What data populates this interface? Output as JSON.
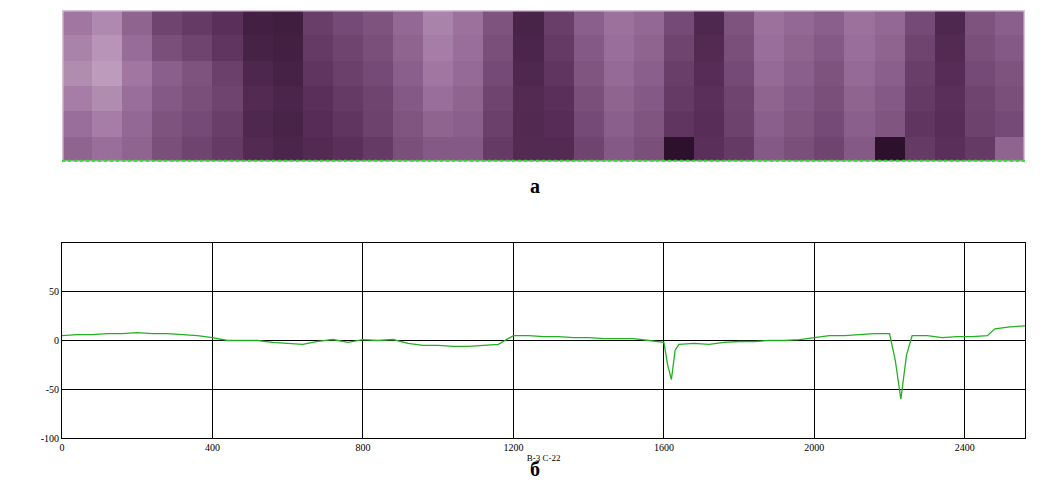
{
  "chart_data": [
    {
      "type": "heatmap",
      "panel": "а",
      "tick_labels": false,
      "x": [
        40,
        120,
        200,
        280,
        360,
        440,
        520,
        600,
        680,
        760,
        840,
        920,
        1000,
        1080,
        1160,
        1240,
        1320,
        1400,
        1480,
        1560,
        1640,
        1720,
        1800,
        1880,
        1960,
        2040,
        2120,
        2200,
        2280,
        2360,
        2440,
        2520
      ],
      "z": [
        [
          60,
          65,
          60,
          50,
          45,
          40,
          30,
          25,
          30,
          35,
          40,
          50,
          55,
          55,
          40,
          30,
          30,
          45,
          55,
          50,
          5,
          35,
          40,
          55,
          50,
          45,
          55,
          5,
          40,
          35,
          40,
          60
        ],
        [
          65,
          70,
          62,
          52,
          48,
          42,
          28,
          24,
          33,
          38,
          44,
          53,
          60,
          58,
          43,
          29,
          33,
          48,
          58,
          53,
          38,
          34,
          44,
          58,
          53,
          48,
          58,
          53,
          38,
          34,
          44,
          48
        ],
        [
          70,
          75,
          65,
          55,
          50,
          45,
          30,
          25,
          35,
          40,
          45,
          55,
          65,
          60,
          45,
          30,
          35,
          50,
          60,
          55,
          40,
          35,
          45,
          60,
          55,
          50,
          60,
          55,
          40,
          35,
          45,
          50
        ],
        [
          75,
          80,
          68,
          58,
          52,
          43,
          27,
          22,
          38,
          43,
          48,
          58,
          68,
          63,
          48,
          28,
          38,
          53,
          63,
          58,
          42,
          33,
          48,
          63,
          58,
          52,
          63,
          58,
          42,
          33,
          48,
          52
        ],
        [
          72,
          78,
          64,
          50,
          45,
          38,
          22,
          20,
          40,
          45,
          50,
          60,
          70,
          65,
          50,
          25,
          40,
          55,
          65,
          60,
          45,
          30,
          50,
          65,
          60,
          55,
          65,
          60,
          45,
          30,
          50,
          55
        ],
        [
          68,
          74,
          60,
          45,
          40,
          35,
          20,
          18,
          42,
          48,
          52,
          62,
          72,
          66,
          52,
          24,
          42,
          58,
          66,
          62,
          48,
          28,
          52,
          66,
          62,
          58,
          66,
          62,
          48,
          28,
          52,
          58
        ]
      ],
      "zlim": [
        0,
        100
      ]
    },
    {
      "type": "line",
      "panel": "б",
      "x_label": "В-3 С-22",
      "color": "#22b022",
      "grid": true,
      "x": [
        0,
        40,
        80,
        120,
        160,
        200,
        240,
        280,
        320,
        360,
        400,
        440,
        480,
        520,
        560,
        600,
        640,
        680,
        720,
        760,
        800,
        840,
        880,
        920,
        960,
        1000,
        1040,
        1080,
        1120,
        1160,
        1200,
        1240,
        1280,
        1320,
        1360,
        1400,
        1440,
        1480,
        1520,
        1560,
        1600,
        1610,
        1620,
        1630,
        1640,
        1680,
        1720,
        1760,
        1800,
        1840,
        1880,
        1920,
        1960,
        2000,
        2040,
        2080,
        2120,
        2160,
        2200,
        2215,
        2230,
        2245,
        2260,
        2300,
        2340,
        2380,
        2420,
        2460,
        2480,
        2520,
        2560
      ],
      "values": [
        5,
        6,
        6,
        7,
        7,
        8,
        7,
        7,
        6,
        5,
        3,
        0,
        0,
        0,
        -2,
        -3,
        -4,
        -1,
        1,
        -2,
        1,
        0,
        1,
        -3,
        -5,
        -5,
        -6,
        -6,
        -5,
        -4,
        5,
        5,
        4,
        4,
        3,
        3,
        2,
        2,
        2,
        0,
        -2,
        -25,
        -40,
        -10,
        -4,
        -3,
        -4,
        -2,
        -1,
        -1,
        0,
        0,
        1,
        3,
        5,
        5,
        6,
        7,
        7,
        -20,
        -60,
        -15,
        5,
        5,
        3,
        4,
        4,
        5,
        12,
        14,
        15
      ],
      "xlim": [
        0,
        2560
      ],
      "ylim": [
        -100,
        100
      ],
      "xticks": [
        0,
        400,
        800,
        1200,
        1600,
        2000,
        2400
      ],
      "yticks": [
        -100,
        -50,
        0,
        50
      ]
    }
  ]
}
